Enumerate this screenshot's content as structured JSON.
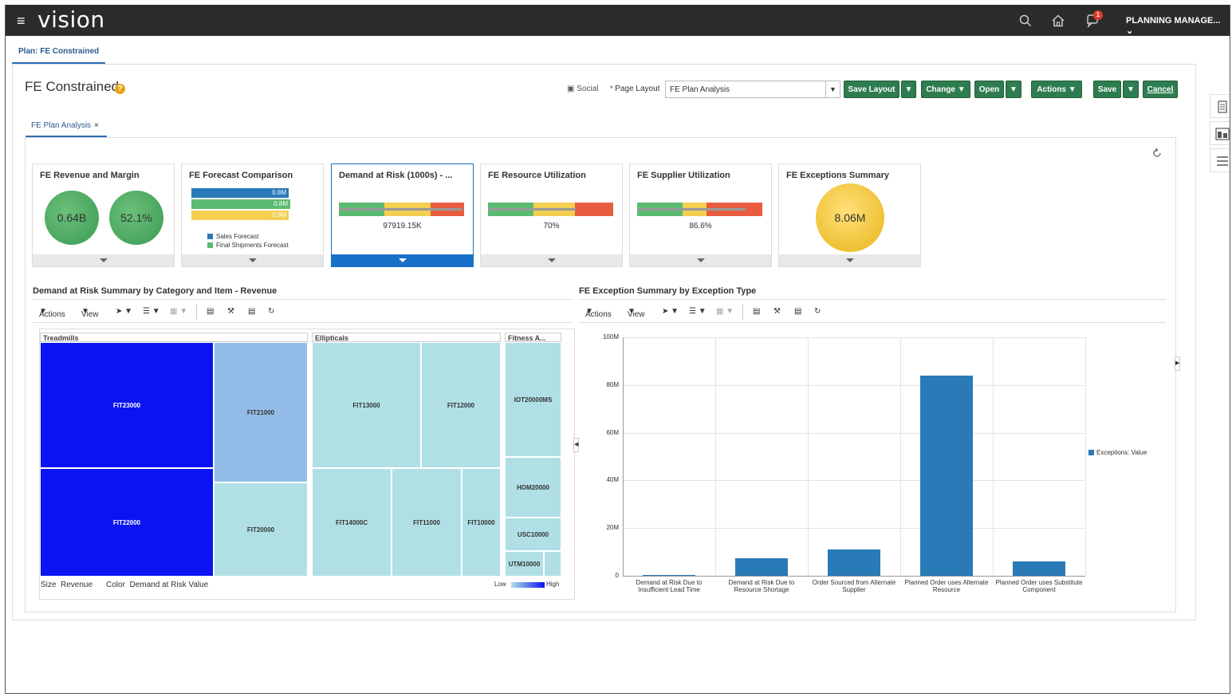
{
  "header": {
    "brand": "vision",
    "user": "PLANNING MANAGE...",
    "notifications": "1"
  },
  "plan_tab": "Plan: FE Constrained",
  "page": {
    "title": "FE Constrained",
    "help": "?",
    "social": "Social",
    "page_layout_label": "Page Layout",
    "page_layout_value": "FE Plan Analysis",
    "buttons": {
      "save_layout": "Save Layout",
      "change": "Change",
      "open": "Open",
      "actions": "Actions",
      "save": "Save",
      "cancel": "Cancel"
    },
    "subtab": "FE Plan Analysis"
  },
  "cards": {
    "revenue": {
      "title": "FE Revenue and Margin",
      "value1": "0.64B",
      "value2": "52.1%"
    },
    "forecast": {
      "title": "FE Forecast Comparison",
      "bar1": "0.8M",
      "bar2": "0.8M",
      "bar3": "0.8M",
      "legend1": "Sales Forecast",
      "legend2": "Final Shipments Forecast"
    },
    "demand": {
      "title": "Demand at Risk (1000s) - ...",
      "value": "97919.15K",
      "fill": 0.99
    },
    "resource": {
      "title": "FE Resource Utilization",
      "value": "70%",
      "fill": 0.7
    },
    "supplier": {
      "title": "FE Supplier Utilization",
      "value": "86.6%",
      "fill": 0.866
    },
    "exceptions": {
      "title": "FE Exceptions Summary",
      "value": "8.06M"
    }
  },
  "colors": {
    "brand_green": "#2e7d4f",
    "selected_blue": "#1670c8",
    "bar_blue": "#2a7ab8",
    "treemap_high": "#0a14f0",
    "treemap_mid": "#93bde8",
    "treemap_low": "#b0e0e6"
  },
  "left_section": {
    "title": "Demand at Risk Summary by Category and Item - Revenue",
    "toolbar": {
      "actions": "Actions",
      "view": "View"
    },
    "treemap": {
      "groups": [
        "Treadmills",
        "Ellipticals",
        "Fitness A..."
      ],
      "items": [
        "FIT23000",
        "FIT21000",
        "FIT22000",
        "FIT20000",
        "FIT13000",
        "FIT12000",
        "FIT14000C",
        "FIT11000",
        "FIT10000",
        "IOT20000MS",
        "HOM20000",
        "USC10000",
        "UTM10000"
      ],
      "size_label": "Size",
      "size_value": "Revenue",
      "color_label": "Color",
      "color_value": "Demand at Risk Value",
      "low": "Low",
      "high": "High"
    }
  },
  "right_section": {
    "title": "FE Exception Summary by Exception Type",
    "toolbar": {
      "actions": "Actions",
      "view": "View"
    }
  },
  "chart_data": {
    "type": "bar",
    "categories": [
      "Demand at Risk Due to Insufficient Lead Time",
      "Demand at Risk Due to Resource Shortage",
      "Order Sourced from Alternate Supplier",
      "Planned Order uses Alternate Resource",
      "Planned Order uses Substitute Component"
    ],
    "series": [
      {
        "name": "Exceptions: Value",
        "values": [
          0.1,
          7.5,
          11.2,
          84,
          6
        ]
      }
    ],
    "value_unit": "M",
    "yticks": [
      "0",
      "20M",
      "40M",
      "60M",
      "80M",
      "100M"
    ],
    "ylim": [
      0,
      100
    ],
    "legend_position": "right",
    "grid": true
  }
}
